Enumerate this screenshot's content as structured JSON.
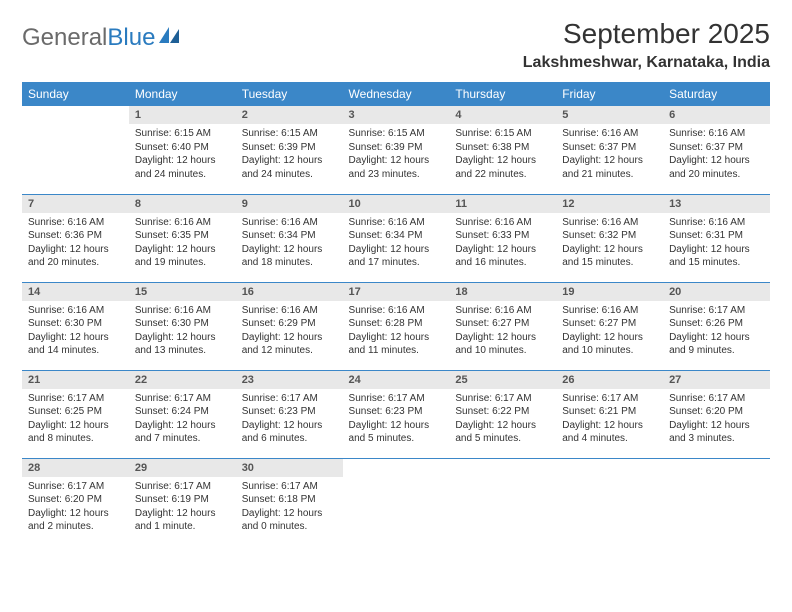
{
  "logo": {
    "text_gray": "General",
    "text_blue": "Blue"
  },
  "title": "September 2025",
  "location": "Lakshmeshwar, Karnataka, India",
  "colors": {
    "header_bg": "#3b87c8",
    "header_text": "#ffffff",
    "daynum_bg": "#e8e8e8",
    "row_divider": "#3b87c8",
    "logo_gray": "#6a6a6a",
    "logo_blue": "#2a7bbf"
  },
  "day_headers": [
    "Sunday",
    "Monday",
    "Tuesday",
    "Wednesday",
    "Thursday",
    "Friday",
    "Saturday"
  ],
  "weeks": [
    [
      {
        "n": "",
        "sunrise": "",
        "sunset": "",
        "daylight": ""
      },
      {
        "n": "1",
        "sunrise": "Sunrise: 6:15 AM",
        "sunset": "Sunset: 6:40 PM",
        "daylight": "Daylight: 12 hours and 24 minutes."
      },
      {
        "n": "2",
        "sunrise": "Sunrise: 6:15 AM",
        "sunset": "Sunset: 6:39 PM",
        "daylight": "Daylight: 12 hours and 24 minutes."
      },
      {
        "n": "3",
        "sunrise": "Sunrise: 6:15 AM",
        "sunset": "Sunset: 6:39 PM",
        "daylight": "Daylight: 12 hours and 23 minutes."
      },
      {
        "n": "4",
        "sunrise": "Sunrise: 6:15 AM",
        "sunset": "Sunset: 6:38 PM",
        "daylight": "Daylight: 12 hours and 22 minutes."
      },
      {
        "n": "5",
        "sunrise": "Sunrise: 6:16 AM",
        "sunset": "Sunset: 6:37 PM",
        "daylight": "Daylight: 12 hours and 21 minutes."
      },
      {
        "n": "6",
        "sunrise": "Sunrise: 6:16 AM",
        "sunset": "Sunset: 6:37 PM",
        "daylight": "Daylight: 12 hours and 20 minutes."
      }
    ],
    [
      {
        "n": "7",
        "sunrise": "Sunrise: 6:16 AM",
        "sunset": "Sunset: 6:36 PM",
        "daylight": "Daylight: 12 hours and 20 minutes."
      },
      {
        "n": "8",
        "sunrise": "Sunrise: 6:16 AM",
        "sunset": "Sunset: 6:35 PM",
        "daylight": "Daylight: 12 hours and 19 minutes."
      },
      {
        "n": "9",
        "sunrise": "Sunrise: 6:16 AM",
        "sunset": "Sunset: 6:34 PM",
        "daylight": "Daylight: 12 hours and 18 minutes."
      },
      {
        "n": "10",
        "sunrise": "Sunrise: 6:16 AM",
        "sunset": "Sunset: 6:34 PM",
        "daylight": "Daylight: 12 hours and 17 minutes."
      },
      {
        "n": "11",
        "sunrise": "Sunrise: 6:16 AM",
        "sunset": "Sunset: 6:33 PM",
        "daylight": "Daylight: 12 hours and 16 minutes."
      },
      {
        "n": "12",
        "sunrise": "Sunrise: 6:16 AM",
        "sunset": "Sunset: 6:32 PM",
        "daylight": "Daylight: 12 hours and 15 minutes."
      },
      {
        "n": "13",
        "sunrise": "Sunrise: 6:16 AM",
        "sunset": "Sunset: 6:31 PM",
        "daylight": "Daylight: 12 hours and 15 minutes."
      }
    ],
    [
      {
        "n": "14",
        "sunrise": "Sunrise: 6:16 AM",
        "sunset": "Sunset: 6:30 PM",
        "daylight": "Daylight: 12 hours and 14 minutes."
      },
      {
        "n": "15",
        "sunrise": "Sunrise: 6:16 AM",
        "sunset": "Sunset: 6:30 PM",
        "daylight": "Daylight: 12 hours and 13 minutes."
      },
      {
        "n": "16",
        "sunrise": "Sunrise: 6:16 AM",
        "sunset": "Sunset: 6:29 PM",
        "daylight": "Daylight: 12 hours and 12 minutes."
      },
      {
        "n": "17",
        "sunrise": "Sunrise: 6:16 AM",
        "sunset": "Sunset: 6:28 PM",
        "daylight": "Daylight: 12 hours and 11 minutes."
      },
      {
        "n": "18",
        "sunrise": "Sunrise: 6:16 AM",
        "sunset": "Sunset: 6:27 PM",
        "daylight": "Daylight: 12 hours and 10 minutes."
      },
      {
        "n": "19",
        "sunrise": "Sunrise: 6:16 AM",
        "sunset": "Sunset: 6:27 PM",
        "daylight": "Daylight: 12 hours and 10 minutes."
      },
      {
        "n": "20",
        "sunrise": "Sunrise: 6:17 AM",
        "sunset": "Sunset: 6:26 PM",
        "daylight": "Daylight: 12 hours and 9 minutes."
      }
    ],
    [
      {
        "n": "21",
        "sunrise": "Sunrise: 6:17 AM",
        "sunset": "Sunset: 6:25 PM",
        "daylight": "Daylight: 12 hours and 8 minutes."
      },
      {
        "n": "22",
        "sunrise": "Sunrise: 6:17 AM",
        "sunset": "Sunset: 6:24 PM",
        "daylight": "Daylight: 12 hours and 7 minutes."
      },
      {
        "n": "23",
        "sunrise": "Sunrise: 6:17 AM",
        "sunset": "Sunset: 6:23 PM",
        "daylight": "Daylight: 12 hours and 6 minutes."
      },
      {
        "n": "24",
        "sunrise": "Sunrise: 6:17 AM",
        "sunset": "Sunset: 6:23 PM",
        "daylight": "Daylight: 12 hours and 5 minutes."
      },
      {
        "n": "25",
        "sunrise": "Sunrise: 6:17 AM",
        "sunset": "Sunset: 6:22 PM",
        "daylight": "Daylight: 12 hours and 5 minutes."
      },
      {
        "n": "26",
        "sunrise": "Sunrise: 6:17 AM",
        "sunset": "Sunset: 6:21 PM",
        "daylight": "Daylight: 12 hours and 4 minutes."
      },
      {
        "n": "27",
        "sunrise": "Sunrise: 6:17 AM",
        "sunset": "Sunset: 6:20 PM",
        "daylight": "Daylight: 12 hours and 3 minutes."
      }
    ],
    [
      {
        "n": "28",
        "sunrise": "Sunrise: 6:17 AM",
        "sunset": "Sunset: 6:20 PM",
        "daylight": "Daylight: 12 hours and 2 minutes."
      },
      {
        "n": "29",
        "sunrise": "Sunrise: 6:17 AM",
        "sunset": "Sunset: 6:19 PM",
        "daylight": "Daylight: 12 hours and 1 minute."
      },
      {
        "n": "30",
        "sunrise": "Sunrise: 6:17 AM",
        "sunset": "Sunset: 6:18 PM",
        "daylight": "Daylight: 12 hours and 0 minutes."
      },
      {
        "n": "",
        "sunrise": "",
        "sunset": "",
        "daylight": ""
      },
      {
        "n": "",
        "sunrise": "",
        "sunset": "",
        "daylight": ""
      },
      {
        "n": "",
        "sunrise": "",
        "sunset": "",
        "daylight": ""
      },
      {
        "n": "",
        "sunrise": "",
        "sunset": "",
        "daylight": ""
      }
    ]
  ]
}
